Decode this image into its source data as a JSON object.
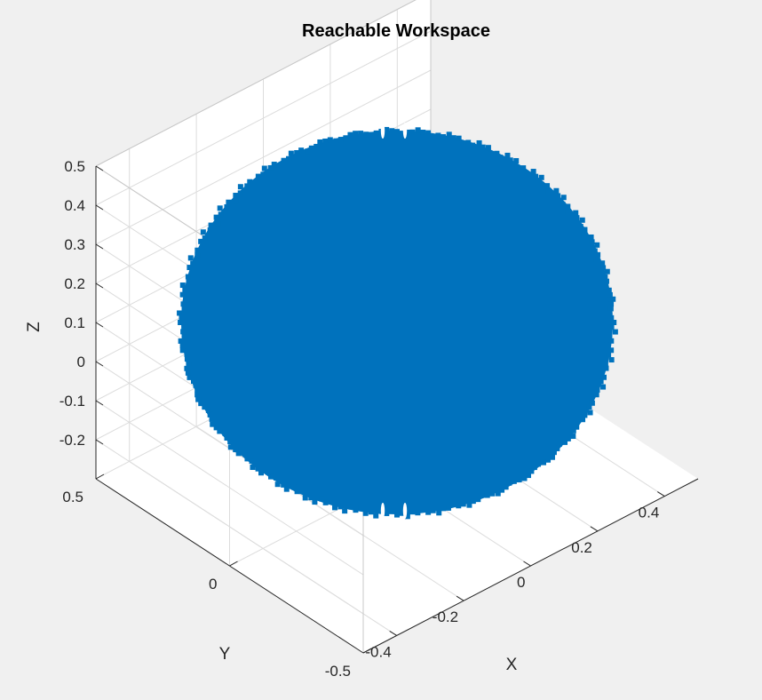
{
  "chart_data": {
    "type": "scatter",
    "title": "Reachable Workspace",
    "xlabel": "X",
    "ylabel": "Y",
    "zlabel": "Z",
    "x_ticks": [
      -0.4,
      -0.2,
      0,
      0.2,
      0.4
    ],
    "x_tick_labels": [
      "-0.4",
      "-0.2",
      "0",
      "0.2",
      "0.4"
    ],
    "y_ticks": [
      -0.5,
      0,
      0.5
    ],
    "y_tick_labels": [
      "-0.5",
      "0",
      "0.5"
    ],
    "z_ticks": [
      -0.2,
      -0.1,
      0,
      0.1,
      0.2,
      0.3,
      0.4,
      0.5
    ],
    "z_tick_labels": [
      "-0.2",
      "-0.1",
      "0",
      "0.1",
      "0.2",
      "0.3",
      "0.4",
      "0.5"
    ],
    "xlim": [
      -0.5,
      0.5
    ],
    "ylim": [
      -0.5,
      0.5
    ],
    "zlim": [
      -0.3,
      0.5
    ],
    "grid": true,
    "series": [
      {
        "shape": "sphere",
        "center": [
          0,
          0,
          0.1
        ],
        "radius": 0.4,
        "color": "#0072bd"
      }
    ]
  }
}
